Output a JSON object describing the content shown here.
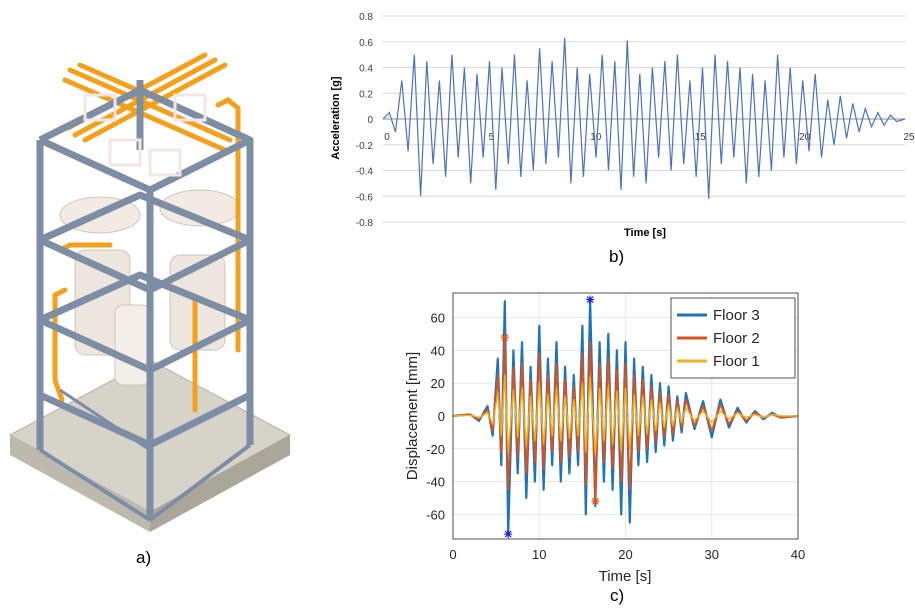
{
  "panels": {
    "a": {
      "label": "a)"
    },
    "b": {
      "label": "b)"
    },
    "c": {
      "label": "c)"
    }
  },
  "colors": {
    "steel": "#7d8da4",
    "pipe": "#f5a01a",
    "vessel": "#efe9e2",
    "base": "#cfccc2",
    "accel": "#4a74b8",
    "floor3": "#1f73b8",
    "floor2": "#d9541a",
    "floor1": "#edb120",
    "marker": "#2020d0"
  },
  "chart_data": [
    {
      "type": "line",
      "xlabel": "Time [s]",
      "ylabel": "Acceleration [g]",
      "xlim": [
        0,
        25
      ],
      "ylim": [
        -0.8,
        0.8
      ],
      "xticks": [
        0,
        5,
        10,
        15,
        20,
        25
      ],
      "yticks": [
        0.8,
        0.6,
        0.4,
        0.2,
        0,
        -0.2,
        -0.4,
        -0.6,
        -0.8
      ],
      "grid": true,
      "series": [
        {
          "x": [
            0,
            0.3,
            0.6,
            0.9,
            1.2,
            1.5,
            1.8,
            2.1,
            2.4,
            2.7,
            3.0,
            3.3,
            3.6,
            3.9,
            4.2,
            4.5,
            4.8,
            5.1,
            5.4,
            5.7,
            6.0,
            6.3,
            6.6,
            6.9,
            7.2,
            7.5,
            7.8,
            8.1,
            8.4,
            8.7,
            9.0,
            9.3,
            9.6,
            9.9,
            10.2,
            10.5,
            10.8,
            11.1,
            11.4,
            11.7,
            12.0,
            12.3,
            12.6,
            12.9,
            13.2,
            13.5,
            13.8,
            14.1,
            14.4,
            14.7,
            15.0,
            15.3,
            15.6,
            15.9,
            16.2,
            16.5,
            16.8,
            17.1,
            17.4,
            17.7,
            18.0,
            18.3,
            18.6,
            18.9,
            19.2,
            19.5,
            19.8,
            20.1,
            20.4,
            20.7,
            21.0,
            21.3,
            21.6,
            21.9,
            22.2,
            22.5,
            22.8,
            23.1,
            23.4,
            23.7,
            24.0,
            24.3,
            24.6,
            25.0
          ],
          "y": [
            0,
            0.05,
            -0.1,
            0.3,
            -0.25,
            0.5,
            -0.6,
            0.45,
            -0.35,
            0.3,
            -0.45,
            0.5,
            -0.3,
            0.4,
            -0.5,
            0.35,
            -0.3,
            0.45,
            -0.55,
            0.4,
            -0.35,
            0.5,
            -0.45,
            0.3,
            -0.4,
            0.55,
            -0.35,
            0.45,
            -0.3,
            0.63,
            -0.5,
            0.4,
            -0.45,
            0.35,
            -0.3,
            0.5,
            -0.4,
            0.45,
            -0.55,
            0.61,
            -0.45,
            0.35,
            -0.5,
            0.4,
            -0.3,
            0.45,
            -0.4,
            0.5,
            -0.35,
            0.3,
            -0.45,
            0.4,
            -0.62,
            0.5,
            -0.35,
            0.45,
            -0.3,
            0.4,
            -0.5,
            0.35,
            -0.45,
            0.3,
            -0.4,
            0.5,
            -0.3,
            0.4,
            -0.35,
            0.3,
            -0.25,
            0.35,
            -0.3,
            0.15,
            -0.2,
            0.18,
            -0.15,
            0.12,
            -0.1,
            0.08,
            -0.06,
            0.05,
            -0.05,
            0.03,
            -0.02,
            0
          ]
        }
      ]
    },
    {
      "type": "line",
      "xlabel": "Time [s]",
      "ylabel": "Displacement [mm]",
      "xlim": [
        0,
        40
      ],
      "ylim": [
        -75,
        75
      ],
      "xticks": [
        0,
        10,
        20,
        30,
        40
      ],
      "yticks": [
        60,
        40,
        20,
        0,
        -20,
        -40,
        -60
      ],
      "grid": true,
      "legend": "top-right",
      "series": [
        {
          "name": "Floor 3",
          "x": [
            0,
            2,
            3,
            4,
            4.6,
            5.2,
            5.6,
            6.0,
            6.4,
            7,
            7.5,
            8,
            8.5,
            9,
            9.5,
            10,
            10.5,
            11,
            11.5,
            12,
            12.5,
            13,
            13.5,
            14,
            14.5,
            15,
            15.4,
            15.9,
            16.5,
            17,
            17.5,
            18,
            18.5,
            19,
            19.5,
            20,
            20.5,
            21,
            21.5,
            22,
            22.5,
            23,
            23.5,
            24,
            24.5,
            25,
            25.5,
            26,
            26.5,
            27,
            28,
            29,
            30,
            31,
            32,
            33,
            34,
            35,
            36,
            37,
            38,
            40
          ],
          "y": [
            0,
            1,
            -3,
            6,
            -12,
            35,
            -30,
            70,
            -72,
            40,
            -35,
            45,
            -50,
            30,
            -40,
            55,
            -45,
            35,
            -30,
            45,
            -40,
            30,
            -35,
            25,
            -30,
            55,
            -60,
            71,
            -55,
            45,
            -40,
            50,
            -45,
            40,
            -60,
            45,
            -65,
            35,
            -30,
            30,
            -28,
            25,
            -22,
            20,
            -18,
            18,
            -15,
            12,
            -10,
            14,
            -8,
            9,
            -13,
            10,
            -7,
            5,
            -4,
            3,
            -2,
            2,
            -1,
            0
          ]
        },
        {
          "name": "Floor 2",
          "x": [
            0,
            2,
            3,
            4,
            4.6,
            5.2,
            5.6,
            6.0,
            6.4,
            7,
            7.5,
            8,
            8.5,
            9,
            9.5,
            10,
            10.5,
            11,
            11.5,
            12,
            12.5,
            13,
            13.5,
            14,
            14.5,
            15,
            15.4,
            15.9,
            16.5,
            17,
            17.5,
            18,
            18.5,
            19,
            19.5,
            20,
            20.5,
            21,
            21.5,
            22,
            22.5,
            23,
            23.5,
            24,
            24.5,
            25,
            25.5,
            26,
            26.5,
            27,
            28,
            29,
            30,
            31,
            32,
            33,
            34,
            35,
            36,
            37,
            38,
            40
          ],
          "y": [
            0,
            1,
            -2,
            4,
            -9,
            25,
            -22,
            48,
            -45,
            30,
            -25,
            32,
            -35,
            22,
            -28,
            38,
            -32,
            25,
            -22,
            32,
            -28,
            22,
            -25,
            18,
            -22,
            38,
            -42,
            45,
            -52,
            32,
            -28,
            35,
            -32,
            28,
            -40,
            32,
            -45,
            25,
            -22,
            22,
            -20,
            18,
            -16,
            14,
            -13,
            13,
            -11,
            9,
            -7,
            10,
            -6,
            6,
            -9,
            7,
            -5,
            3,
            -3,
            2,
            -1,
            1,
            -1,
            0
          ]
        },
        {
          "name": "Floor 1",
          "x": [
            0,
            2,
            3,
            4,
            4.6,
            5.2,
            5.6,
            6.0,
            6.4,
            7,
            7.5,
            8,
            8.5,
            9,
            9.5,
            10,
            10.5,
            11,
            11.5,
            12,
            12.5,
            13,
            13.5,
            14,
            14.5,
            15,
            15.4,
            15.9,
            16.5,
            17,
            17.5,
            18,
            18.5,
            19,
            19.5,
            20,
            20.5,
            21,
            21.5,
            22,
            22.5,
            23,
            23.5,
            24,
            24.5,
            25,
            25.5,
            26,
            26.5,
            27,
            28,
            29,
            30,
            31,
            32,
            33,
            34,
            35,
            36,
            37,
            38,
            40
          ],
          "y": [
            0,
            0.5,
            -1,
            2,
            -5,
            14,
            -12,
            25,
            -22,
            16,
            -13,
            17,
            -18,
            12,
            -15,
            20,
            -17,
            13,
            -12,
            17,
            -15,
            12,
            -13,
            10,
            -12,
            20,
            -22,
            24,
            -23,
            17,
            -15,
            18,
            -17,
            15,
            -21,
            17,
            -20,
            13,
            -12,
            12,
            -11,
            10,
            -9,
            8,
            -7,
            7,
            -6,
            5,
            -4,
            5,
            -3,
            3,
            -4,
            3,
            -2,
            2,
            -1,
            1,
            -1,
            1,
            0,
            0
          ]
        }
      ]
    }
  ]
}
